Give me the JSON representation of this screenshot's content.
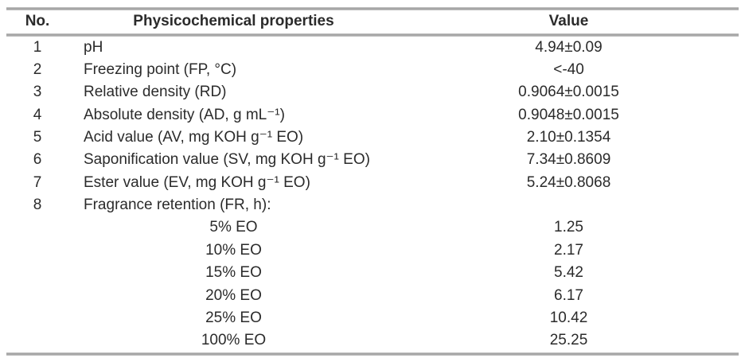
{
  "page": {
    "background_color": "#ffffff",
    "rule_color": "#a9a9a9",
    "text_color": "#2b2b2b"
  },
  "table": {
    "headers": {
      "no": "No.",
      "property": "Physicochemical properties",
      "value": "Value"
    },
    "rows": [
      {
        "no": "1",
        "property": "pH",
        "value": "4.94±0.09"
      },
      {
        "no": "2",
        "property": "Freezing point (FP, °C)",
        "value": "<-40"
      },
      {
        "no": "3",
        "property": "Relative density (RD)",
        "value": "0.9064±0.0015"
      },
      {
        "no": "4",
        "property": "Absolute density (AD, g mL⁻¹)",
        "value": "0.9048±0.0015"
      },
      {
        "no": "5",
        "property": "Acid value (AV, mg KOH g⁻¹ EO)",
        "value": "2.10±0.1354"
      },
      {
        "no": "6",
        "property": "Saponification value (SV, mg KOH g⁻¹ EO)",
        "value": "7.34±0.8609"
      },
      {
        "no": "7",
        "property": "Ester value (EV, mg KOH g⁻¹ EO)",
        "value": "5.24±0.8068"
      },
      {
        "no": "8",
        "property": "Fragrance retention (FR, h):",
        "value": "",
        "subrows": [
          {
            "property": "5% EO",
            "value": "1.25"
          },
          {
            "property": "10% EO",
            "value": "2.17"
          },
          {
            "property": "15% EO",
            "value": "5.42"
          },
          {
            "property": "20% EO",
            "value": "6.17"
          },
          {
            "property": "25% EO",
            "value": "10.42"
          },
          {
            "property": "100% EO",
            "value": "25.25"
          }
        ]
      }
    ]
  }
}
